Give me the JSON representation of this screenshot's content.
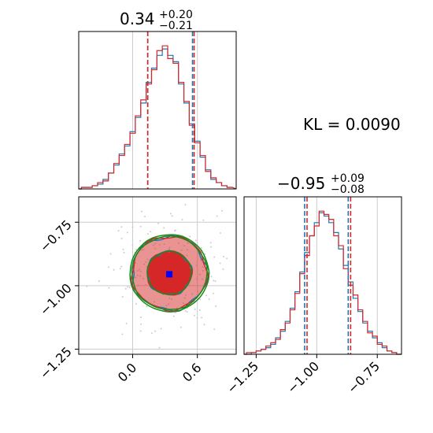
{
  "kl_annotation": "KL = 0.0090",
  "colors": {
    "blue": "#1f77b4",
    "red": "#d62728",
    "green": "#1a8a1a",
    "grid": "#cccccc",
    "marker": "#0000ff",
    "scatter": "#cccccc"
  },
  "panels": {
    "p1": {
      "title_main": "0.34",
      "title_sup": "+0.20",
      "title_sub": "−0.21"
    },
    "p2": {
      "title_main": "−0.95",
      "title_sup": "+0.09",
      "title_sub": "−0.08"
    }
  },
  "chart_data": [
    {
      "type": "histogram",
      "parameter": "p1",
      "xlim": [
        -0.5,
        0.96
      ],
      "grid": true,
      "median": 0.34,
      "upper_error": 0.2,
      "lower_error": 0.21,
      "quantile_lines": {
        "blue": [
          0.14,
          0.555
        ],
        "red": [
          0.14,
          0.57
        ]
      },
      "center_bins": [
        -0.5,
        -0.45,
        -0.4,
        -0.35,
        -0.3,
        -0.25,
        -0.2,
        -0.15,
        -0.1,
        -0.05,
        0.0,
        0.05,
        0.1,
        0.15,
        0.2,
        0.25,
        0.3,
        0.35,
        0.4,
        0.45,
        0.5,
        0.55,
        0.6,
        0.65,
        0.7,
        0.75,
        0.8,
        0.85,
        0.9
      ],
      "series": [
        {
          "color": "blue",
          "values": [
            0,
            1,
            1,
            2,
            3,
            6,
            10,
            15,
            22,
            27,
            36,
            45,
            54,
            67,
            76,
            84,
            88,
            84,
            80,
            66,
            54,
            41,
            30,
            20,
            12,
            6,
            4,
            2,
            1
          ]
        },
        {
          "color": "red",
          "values": [
            0,
            1,
            1,
            2,
            4,
            5,
            10,
            16,
            21,
            28,
            35,
            46,
            56,
            66,
            75,
            87,
            90,
            82,
            79,
            67,
            55,
            40,
            29,
            21,
            11,
            7,
            4,
            2,
            1
          ]
        }
      ]
    },
    {
      "type": "histogram",
      "parameter": "p2",
      "xlim": [
        -1.3,
        -0.65
      ],
      "xticks": [
        "−1.25",
        "−1.00",
        "−0.75"
      ],
      "xtick_values": [
        -1.25,
        -1.0,
        -0.75
      ],
      "grid": true,
      "median": -0.95,
      "upper_error": 0.09,
      "lower_error": 0.08,
      "quantile_lines": {
        "blue": [
          -1.05,
          -0.87
        ],
        "red": [
          -1.04,
          -0.86
        ]
      },
      "center_bins": [
        -1.3,
        -1.28,
        -1.26,
        -1.24,
        -1.22,
        -1.2,
        -1.18,
        -1.16,
        -1.14,
        -1.12,
        -1.1,
        -1.08,
        -1.06,
        -1.04,
        -1.02,
        -1.0,
        -0.98,
        -0.96,
        -0.94,
        -0.92,
        -0.9,
        -0.88,
        -0.86,
        -0.84,
        -0.82,
        -0.8,
        -0.78,
        -0.76,
        -0.74,
        -0.72,
        -0.7,
        -0.68,
        -0.66
      ],
      "series": [
        {
          "color": "blue",
          "values": [
            0,
            0,
            1,
            2,
            3,
            4,
            6,
            10,
            14,
            20,
            28,
            38,
            50,
            62,
            72,
            80,
            86,
            84,
            80,
            74,
            64,
            54,
            44,
            34,
            26,
            19,
            14,
            10,
            7,
            4,
            2,
            1,
            0
          ]
        },
        {
          "color": "red",
          "values": [
            0,
            1,
            1,
            2,
            3,
            5,
            7,
            9,
            15,
            19,
            27,
            37,
            49,
            60,
            72,
            78,
            87,
            85,
            82,
            72,
            66,
            52,
            42,
            36,
            27,
            20,
            13,
            11,
            6,
            5,
            2,
            1,
            0
          ]
        }
      ]
    },
    {
      "type": "contour",
      "parameters": [
        "p1",
        "p2"
      ],
      "xlim": [
        -0.5,
        0.96
      ],
      "ylim": [
        -1.27,
        -0.65
      ],
      "xticks": [
        "0.0",
        "0.6"
      ],
      "xtick_values": [
        0.0,
        0.6
      ],
      "yticks": [
        "−0.75",
        "−1.00",
        "−1.25"
      ],
      "ytick_values": [
        -0.75,
        -1.0,
        -1.25
      ],
      "grid": true,
      "center": [
        0.34,
        -0.95
      ],
      "sigma": [
        0.205,
        0.085
      ],
      "levels": [
        {
          "name": "inner",
          "scale": 1.0
        },
        {
          "name": "outer",
          "scale": 1.7
        }
      ],
      "series": [
        {
          "color": "red",
          "style": "filled"
        },
        {
          "color": "blue",
          "style": "line"
        },
        {
          "color": "green",
          "style": "line"
        }
      ],
      "markers": [
        {
          "color": "red",
          "x": 0.34,
          "y": -0.945
        },
        {
          "color": "blue",
          "x": 0.34,
          "y": -0.955
        }
      ]
    }
  ]
}
